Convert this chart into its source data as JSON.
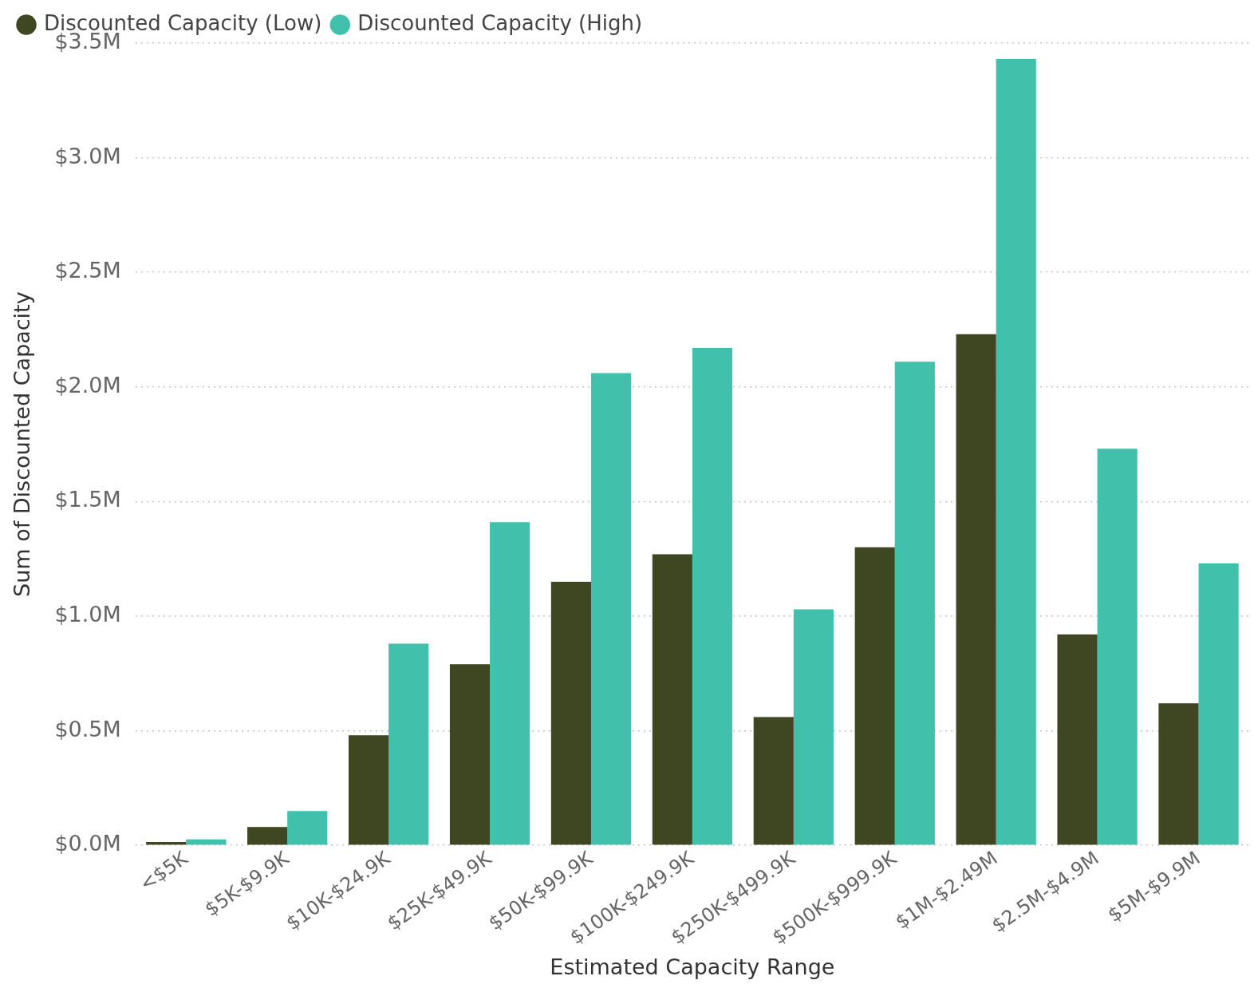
{
  "chart_data": {
    "type": "bar",
    "xlabel": "Estimated Capacity Range",
    "ylabel": "Sum of Discounted Capacity",
    "categories": [
      "<$5K",
      "$5K-$9.9K",
      "$10K-$24.9K",
      "$25K-$49.9K",
      "$50K-$99.9K",
      "$100K-$249.9K",
      "$250K-$499.9K",
      "$500K-$999.9K",
      "$1M-$2.49M",
      "$2.5M-$4.9M",
      "$5M-$9.9M"
    ],
    "series": [
      {
        "name": "Discounted Capacity (Low)",
        "color": "#3e4622",
        "values": [
          0.015,
          0.08,
          0.48,
          0.79,
          1.15,
          1.27,
          0.56,
          1.3,
          2.23,
          0.92,
          0.62
        ]
      },
      {
        "name": "Discounted Capacity (High)",
        "color": "#41c1ab",
        "values": [
          0.026,
          0.15,
          0.88,
          1.41,
          2.06,
          2.17,
          1.03,
          2.11,
          3.43,
          1.73,
          1.23
        ]
      }
    ],
    "ylim": [
      0,
      3.5
    ],
    "yticks": [
      {
        "value": 0,
        "label": "$0.0M"
      },
      {
        "value": 0.5,
        "label": "$0.5M"
      },
      {
        "value": 1,
        "label": "$1.0M"
      },
      {
        "value": 1.5,
        "label": "$1.5M"
      },
      {
        "value": 2,
        "label": "$2.0M"
      },
      {
        "value": 2.5,
        "label": "$2.5M"
      },
      {
        "value": 3,
        "label": "$3.0M"
      },
      {
        "value": 3.5,
        "label": "$3.5M"
      }
    ],
    "grid": "y",
    "legend": "top left"
  }
}
